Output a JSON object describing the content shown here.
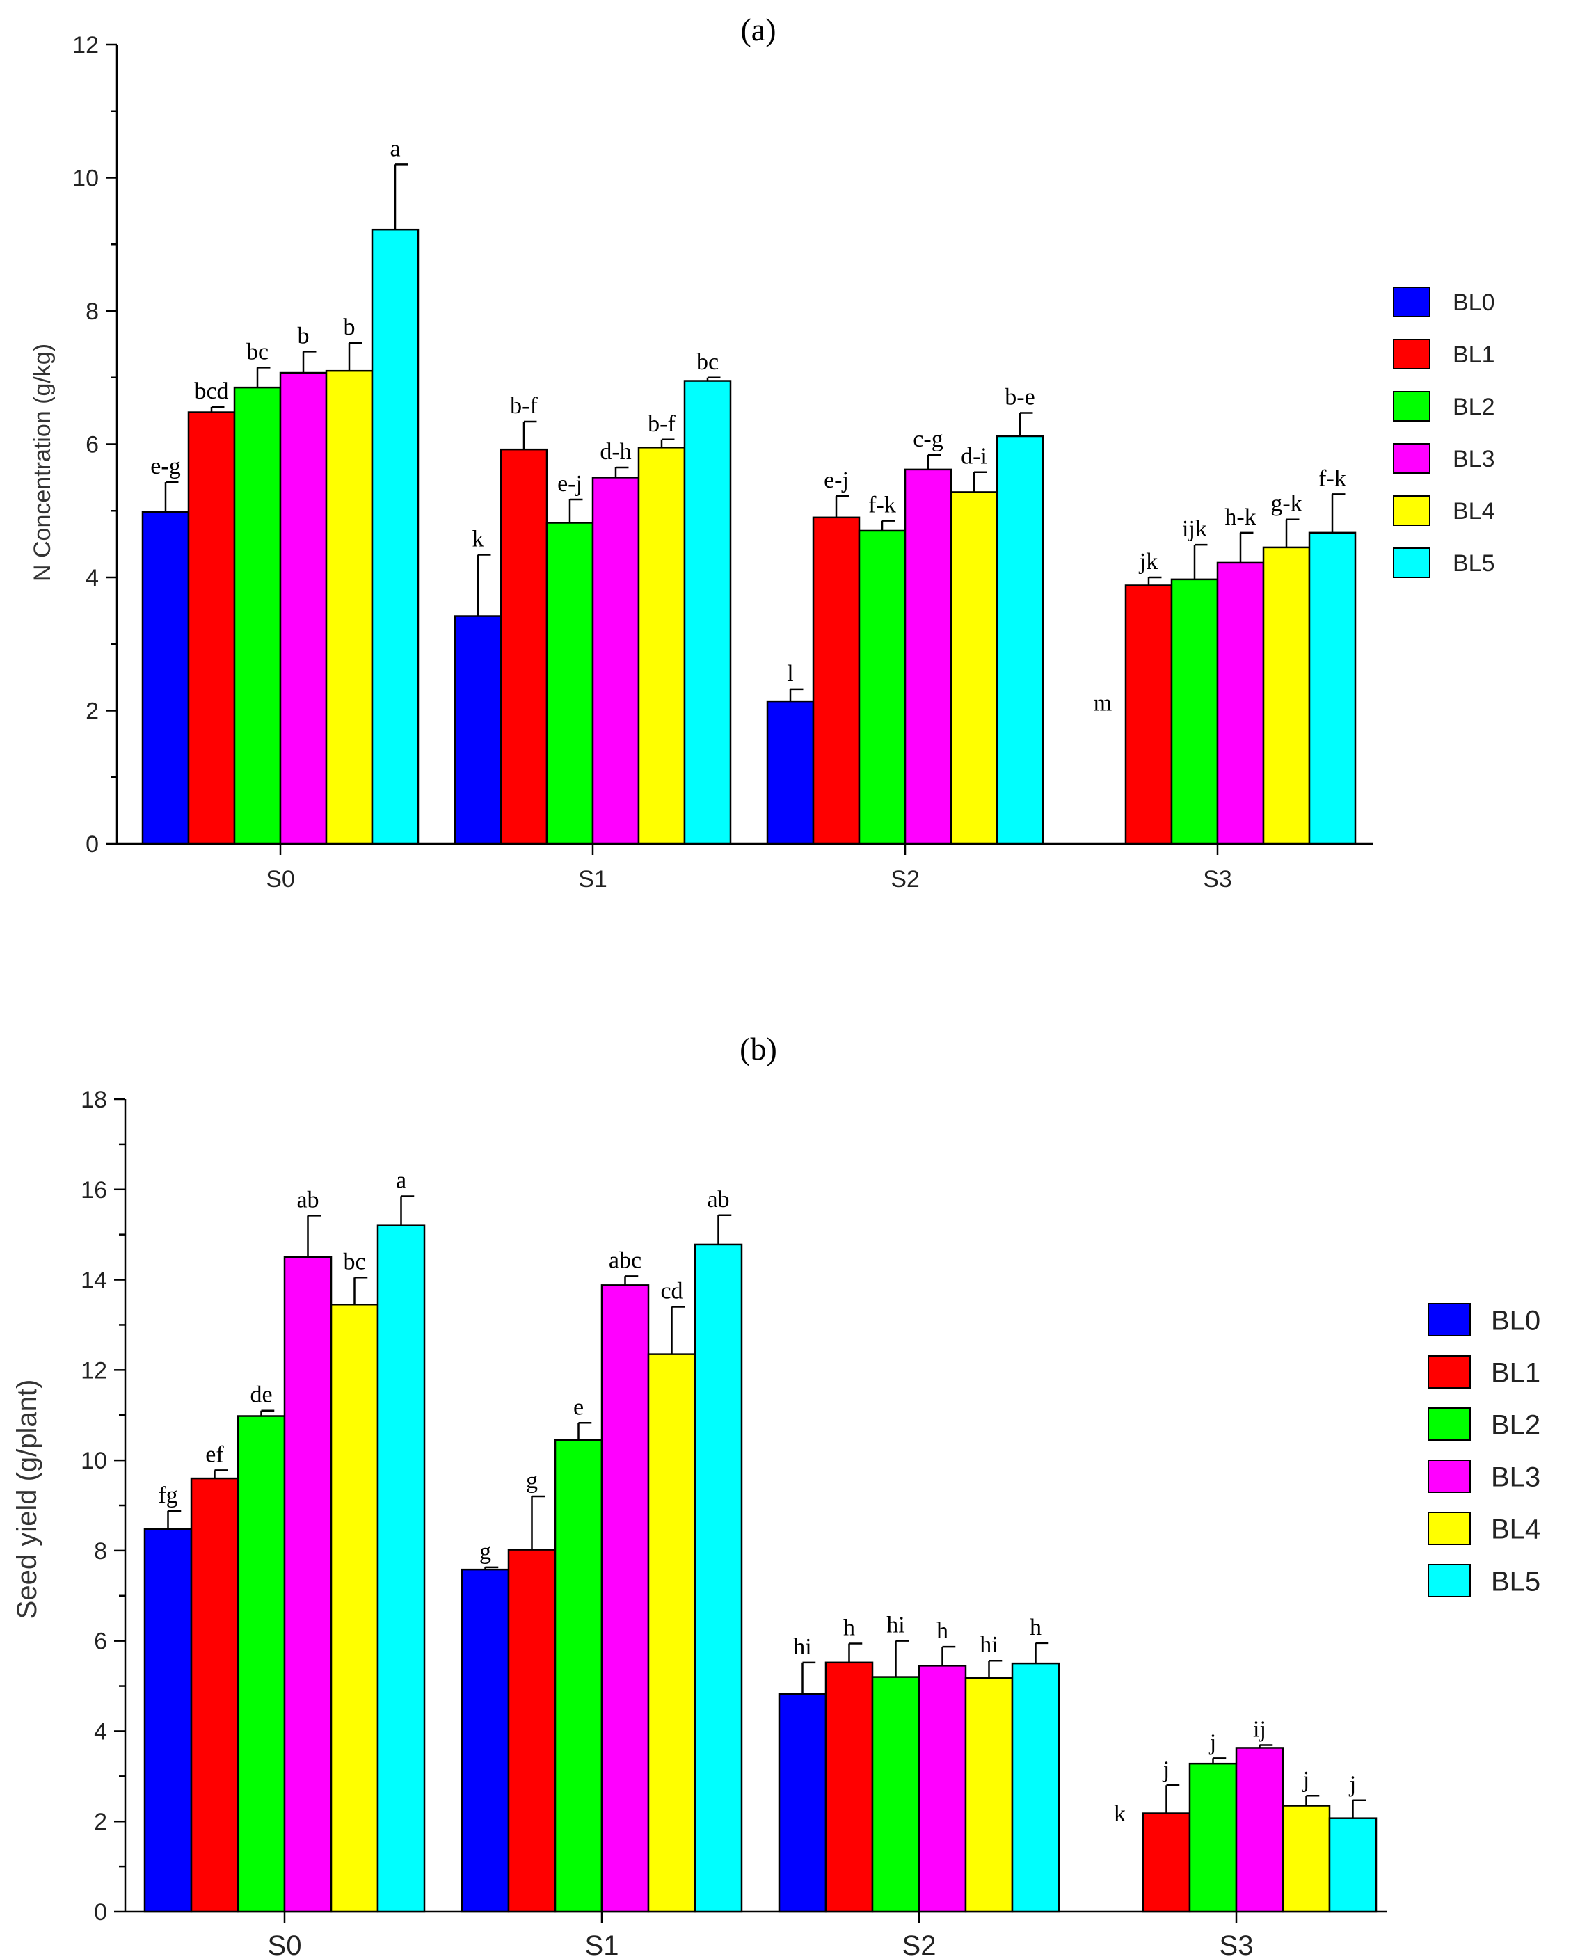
{
  "chart_data": [
    {
      "type": "bar",
      "title": "(a)",
      "xlabel": "",
      "ylabel": "N Concentration (g/kg)",
      "ylim": [
        0,
        12
      ],
      "yticks": [
        0,
        2,
        4,
        6,
        8,
        10,
        12
      ],
      "grid": false,
      "legend_position": "right",
      "categories": [
        "S0",
        "S1",
        "S2",
        "S3"
      ],
      "series": [
        {
          "name": "BL0",
          "color": "#0000ff",
          "values": [
            4.98,
            3.42,
            2.14,
            0
          ],
          "errors": [
            0.45,
            0.92,
            0.18,
            0
          ],
          "letters": [
            "e-g",
            "k",
            "l",
            "m"
          ]
        },
        {
          "name": "BL1",
          "color": "#ff0000",
          "values": [
            6.48,
            5.92,
            4.9,
            3.88
          ],
          "errors": [
            0.08,
            0.42,
            0.32,
            0.12
          ],
          "letters": [
            "bcd",
            "b-f",
            "e-j",
            "jk"
          ]
        },
        {
          "name": "BL2",
          "color": "#00ff00",
          "values": [
            6.85,
            4.82,
            4.7,
            3.97
          ],
          "errors": [
            0.3,
            0.35,
            0.15,
            0.52
          ],
          "letters": [
            "bc",
            "e-j",
            "f-k",
            "ijk"
          ]
        },
        {
          "name": "BL3",
          "color": "#ff00ff",
          "values": [
            7.07,
            5.5,
            5.62,
            4.22
          ],
          "errors": [
            0.32,
            0.15,
            0.22,
            0.45
          ],
          "letters": [
            "b",
            "d-h",
            "c-g",
            "h-k"
          ]
        },
        {
          "name": "BL4",
          "color": "#ffff00",
          "values": [
            7.1,
            5.95,
            5.28,
            4.45
          ],
          "errors": [
            0.42,
            0.12,
            0.3,
            0.42
          ],
          "letters": [
            "b",
            "b-f",
            "d-i",
            "g-k"
          ]
        },
        {
          "name": "BL5",
          "color": "#00ffff",
          "values": [
            9.22,
            6.95,
            6.12,
            4.67
          ],
          "errors": [
            0.98,
            0.05,
            0.35,
            0.58
          ],
          "letters": [
            "a",
            "bc",
            "b-e",
            "f-k"
          ]
        }
      ]
    },
    {
      "type": "bar",
      "title": "(b)",
      "xlabel": "",
      "ylabel": "Seed yield (g/plant)",
      "ylim": [
        0,
        18
      ],
      "yticks": [
        0,
        2,
        4,
        6,
        8,
        10,
        12,
        14,
        16,
        18
      ],
      "grid": false,
      "legend_position": "right",
      "categories": [
        "S0",
        "S1",
        "S2",
        "S3"
      ],
      "series": [
        {
          "name": "BL0",
          "color": "#0000ff",
          "values": [
            8.48,
            7.58,
            4.82,
            0
          ],
          "errors": [
            0.4,
            0.05,
            0.7,
            0
          ],
          "letters": [
            "fg",
            "g",
            "hi",
            "k"
          ]
        },
        {
          "name": "BL1",
          "color": "#ff0000",
          "values": [
            9.6,
            8.02,
            5.52,
            2.18
          ],
          "errors": [
            0.18,
            1.18,
            0.42,
            0.62
          ],
          "letters": [
            "ef",
            "g",
            "h",
            "j"
          ]
        },
        {
          "name": "BL2",
          "color": "#00ff00",
          "values": [
            10.98,
            10.45,
            5.2,
            3.28
          ],
          "errors": [
            0.12,
            0.38,
            0.8,
            0.12
          ],
          "letters": [
            "de",
            "e",
            "hi",
            "j"
          ]
        },
        {
          "name": "BL3",
          "color": "#ff00ff",
          "values": [
            14.5,
            13.88,
            5.45,
            3.63
          ],
          "errors": [
            0.92,
            0.2,
            0.42,
            0.06
          ],
          "letters": [
            "ab",
            "abc",
            "h",
            "ij"
          ]
        },
        {
          "name": "BL4",
          "color": "#ffff00",
          "values": [
            13.45,
            12.35,
            5.18,
            2.35
          ],
          "errors": [
            0.6,
            1.05,
            0.38,
            0.22
          ],
          "letters": [
            "bc",
            "cd",
            "hi",
            "j"
          ]
        },
        {
          "name": "BL5",
          "color": "#00ffff",
          "values": [
            15.2,
            14.78,
            5.5,
            2.07
          ],
          "errors": [
            0.65,
            0.65,
            0.45,
            0.4
          ],
          "letters": [
            "a",
            "ab",
            "h",
            "j"
          ]
        }
      ]
    }
  ]
}
